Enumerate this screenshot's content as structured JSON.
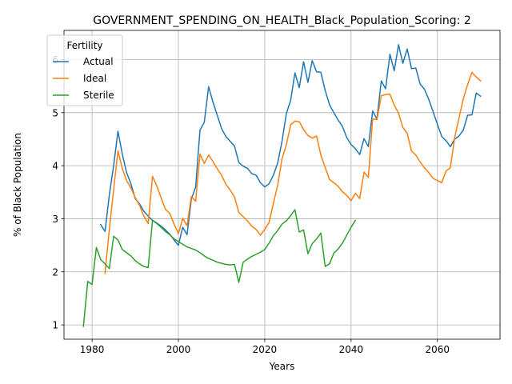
{
  "chart_data": {
    "type": "line",
    "title": "GOVERNMENT_SPENDING_ON_HEALTH_Black_Population_Scoring: 2",
    "xlabel": "Years",
    "ylabel": "% of Black Population",
    "xlim": [
      1973.5,
      2074.5
    ],
    "ylim": [
      0.73,
      6.55
    ],
    "xticks": [
      1980,
      2000,
      2020,
      2040,
      2060
    ],
    "yticks": [
      1,
      2,
      3,
      4,
      5,
      6
    ],
    "grid": true,
    "legend": {
      "title": "Fertility",
      "placement": "top-left"
    },
    "series": [
      {
        "name": "Actual",
        "color": "#1f77b4",
        "x": [
          1982,
          1983,
          1984,
          1985,
          1986,
          1987,
          1988,
          1989,
          1990,
          1991,
          1992,
          1993,
          1994,
          1995,
          1996,
          1997,
          1998,
          1999,
          2000,
          2001,
          2002,
          2003,
          2004,
          2005,
          2006,
          2007,
          2008,
          2009,
          2010,
          2011,
          2012,
          2013,
          2014,
          2015,
          2016,
          2017,
          2018,
          2019,
          2020,
          2021,
          2022,
          2023,
          2024,
          2025,
          2026,
          2027,
          2028,
          2029,
          2030,
          2031,
          2032,
          2033,
          2034,
          2035,
          2036,
          2037,
          2038,
          2039,
          2040,
          2041,
          2042,
          2043,
          2044,
          2045,
          2046,
          2047,
          2048,
          2049,
          2050,
          2051,
          2052,
          2053,
          2054,
          2055,
          2056,
          2057,
          2058,
          2059,
          2060,
          2061,
          2062,
          2063,
          2064,
          2065,
          2066,
          2067,
          2068,
          2069,
          2070
        ],
        "y": [
          2.89,
          2.76,
          3.45,
          4.0,
          4.65,
          4.22,
          3.87,
          3.66,
          3.38,
          3.28,
          3.14,
          3.05,
          2.97,
          2.92,
          2.86,
          2.79,
          2.71,
          2.6,
          2.5,
          2.84,
          2.7,
          3.37,
          3.6,
          4.67,
          4.82,
          5.49,
          5.2,
          4.95,
          4.7,
          4.55,
          4.46,
          4.37,
          4.06,
          3.99,
          3.95,
          3.85,
          3.82,
          3.68,
          3.6,
          3.66,
          3.82,
          4.05,
          4.46,
          4.98,
          5.23,
          5.75,
          5.47,
          5.96,
          5.57,
          5.98,
          5.77,
          5.76,
          5.42,
          5.15,
          5.0,
          4.86,
          4.74,
          4.53,
          4.4,
          4.32,
          4.21,
          4.51,
          4.36,
          5.03,
          4.88,
          5.6,
          5.45,
          6.1,
          5.79,
          6.28,
          5.93,
          6.2,
          5.83,
          5.84,
          5.54,
          5.44,
          5.25,
          5.02,
          4.78,
          4.55,
          4.47,
          4.36,
          4.5,
          4.56,
          4.67,
          4.95,
          4.96,
          5.37,
          5.31
        ]
      },
      {
        "name": "Ideal",
        "color": "#ff7f0e",
        "x": [
          1983,
          1984,
          1985,
          1986,
          1987,
          1988,
          1989,
          1990,
          1991,
          1992,
          1993,
          1994,
          1995,
          1996,
          1997,
          1998,
          1999,
          2000,
          2001,
          2002,
          2003,
          2004,
          2005,
          2006,
          2007,
          2008,
          2009,
          2010,
          2011,
          2012,
          2013,
          2014,
          2015,
          2016,
          2017,
          2018,
          2019,
          2020,
          2021,
          2022,
          2023,
          2024,
          2025,
          2026,
          2027,
          2028,
          2029,
          2030,
          2031,
          2032,
          2033,
          2034,
          2035,
          2036,
          2037,
          2038,
          2039,
          2040,
          2041,
          2042,
          2043,
          2044,
          2045,
          2046,
          2047,
          2048,
          2049,
          2050,
          2051,
          2052,
          2053,
          2054,
          2055,
          2056,
          2057,
          2058,
          2059,
          2060,
          2061,
          2062,
          2063,
          2064,
          2065,
          2066,
          2067,
          2068,
          2069,
          2070
        ],
        "y": [
          1.97,
          2.8,
          3.55,
          4.28,
          3.95,
          3.72,
          3.58,
          3.4,
          3.25,
          3.05,
          2.91,
          3.8,
          3.62,
          3.39,
          3.18,
          3.1,
          2.9,
          2.72,
          3.01,
          2.87,
          3.42,
          3.33,
          4.22,
          4.04,
          4.2,
          4.08,
          3.94,
          3.82,
          3.65,
          3.54,
          3.41,
          3.12,
          3.04,
          2.96,
          2.86,
          2.8,
          2.69,
          2.8,
          2.93,
          3.29,
          3.63,
          4.13,
          4.39,
          4.77,
          4.84,
          4.83,
          4.68,
          4.57,
          4.52,
          4.56,
          4.2,
          3.97,
          3.74,
          3.68,
          3.61,
          3.51,
          3.44,
          3.34,
          3.48,
          3.38,
          3.88,
          3.78,
          4.88,
          4.87,
          5.32,
          5.34,
          5.35,
          5.14,
          4.99,
          4.72,
          4.61,
          4.28,
          4.2,
          4.07,
          3.96,
          3.87,
          3.76,
          3.72,
          3.68,
          3.9,
          3.96,
          4.53,
          4.9,
          5.26,
          5.53,
          5.76,
          5.67,
          5.6
        ]
      },
      {
        "name": "Sterile",
        "color": "#2ca02c",
        "x": [
          1978,
          1979,
          1980,
          1981,
          1982,
          1983,
          1984,
          1985,
          1986,
          1987,
          1988,
          1989,
          1990,
          1991,
          1992,
          1993,
          1994,
          1995,
          1996,
          1997,
          1998,
          1999,
          2000,
          2001,
          2002,
          2003,
          2004,
          2005,
          2006,
          2007,
          2008,
          2009,
          2010,
          2011,
          2012,
          2013,
          2014,
          2015,
          2016,
          2017,
          2018,
          2019,
          2020,
          2021,
          2022,
          2023,
          2024,
          2025,
          2026,
          2027,
          2028,
          2029,
          2030,
          2031,
          2032,
          2033,
          2034,
          2035,
          2036,
          2037,
          2038,
          2039,
          2040,
          2041
        ],
        "y": [
          0.97,
          1.82,
          1.76,
          2.46,
          2.23,
          2.15,
          2.06,
          2.67,
          2.6,
          2.42,
          2.36,
          2.3,
          2.21,
          2.15,
          2.1,
          2.08,
          2.97,
          2.91,
          2.84,
          2.76,
          2.7,
          2.62,
          2.57,
          2.52,
          2.47,
          2.44,
          2.41,
          2.36,
          2.3,
          2.25,
          2.22,
          2.18,
          2.16,
          2.14,
          2.13,
          2.14,
          1.8,
          2.18,
          2.24,
          2.29,
          2.33,
          2.37,
          2.42,
          2.54,
          2.68,
          2.78,
          2.9,
          2.96,
          3.06,
          3.17,
          2.75,
          2.79,
          2.34,
          2.53,
          2.62,
          2.73,
          2.1,
          2.15,
          2.35,
          2.43,
          2.54,
          2.69,
          2.84,
          2.97
        ]
      }
    ]
  }
}
